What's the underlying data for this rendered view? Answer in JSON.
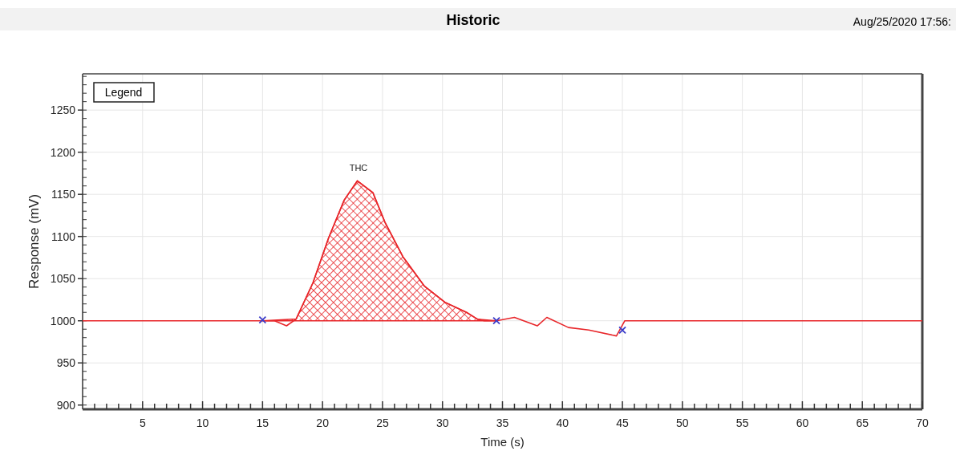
{
  "chart_data": {
    "type": "line",
    "title": "Historic",
    "xlabel": "Time (s)",
    "ylabel": "Response (mV)",
    "annotations": [
      "Aug/25/2020 17:56:",
      "Legend",
      {
        "text": "THC",
        "x": 23,
        "y": 1166
      }
    ],
    "xlim": [
      0,
      70
    ],
    "xticks": [
      5,
      10,
      15,
      20,
      25,
      30,
      35,
      40,
      45,
      50,
      55,
      60,
      65,
      70
    ],
    "ylim": [
      895,
      1293
    ],
    "yticks": [
      900,
      950,
      1000,
      1050,
      1100,
      1150,
      1200,
      1250
    ],
    "grid": true,
    "series": [
      {
        "type": "area",
        "color": "#e8262a",
        "x": [
          15,
          17.8,
          19.2,
          20.5,
          21.8,
          22.9,
          24.2,
          25.2,
          26.7,
          28.5,
          30.2,
          32,
          32.9,
          34.5
        ],
        "values": [
          1000,
          1002,
          1045,
          1098,
          1143,
          1166,
          1152,
          1117,
          1076,
          1041,
          1022,
          1010,
          1002,
          1000
        ]
      },
      {
        "color": "#e8262a",
        "x": [
          0,
          15,
          16,
          17,
          17.8,
          19.2,
          20.5,
          21.8,
          22.9,
          24.2,
          25.2,
          26.7,
          28.5,
          30.2,
          32,
          32.9,
          33.5,
          34.5,
          36,
          37.9,
          38.7,
          40.5,
          42.2,
          44.5,
          45.2,
          70
        ],
        "values": [
          1000,
          1000,
          1000,
          994,
          1002,
          1045,
          1098,
          1143,
          1166,
          1152,
          1117,
          1076,
          1041,
          1022,
          1010,
          1002,
          1000,
          1000,
          1004,
          994,
          1004,
          992,
          989,
          982,
          1000,
          1000
        ]
      },
      {
        "type": "scatter",
        "color": "#3b3bc8",
        "marker": "cross",
        "x": [
          15,
          34.5,
          45
        ],
        "values": [
          1001,
          1000,
          989
        ]
      }
    ]
  }
}
